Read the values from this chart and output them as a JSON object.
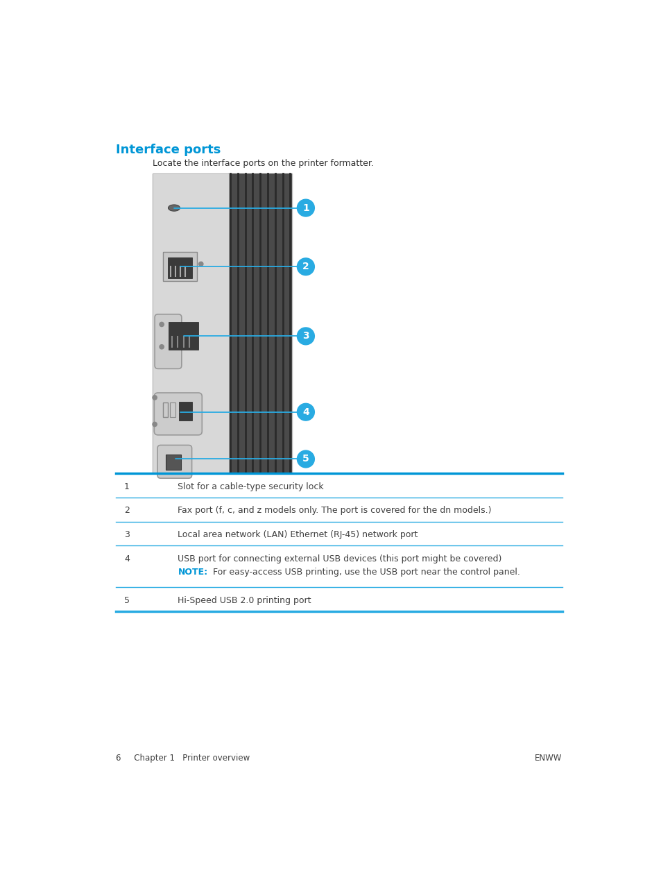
{
  "title": "Interface ports",
  "subtitle": "Locate the interface ports on the printer formatter.",
  "title_color": "#0096D6",
  "subtitle_color": "#333333",
  "note_color": "#0096D6",
  "line_color": "#0096D6",
  "line_color_thin": "#29ABE2",
  "text_color": "#404040",
  "footer_left": "6     Chapter 1   Printer overview",
  "footer_right": "ENWW",
  "callout_color": "#29ABE2",
  "callout_text_color": "#ffffff",
  "bg_color": "#ffffff",
  "panel_bg": "#e0e0e0",
  "panel_face": "#d0d0d0",
  "stripe_color": "#555555",
  "stripe_line_color": "#3a3a3a"
}
